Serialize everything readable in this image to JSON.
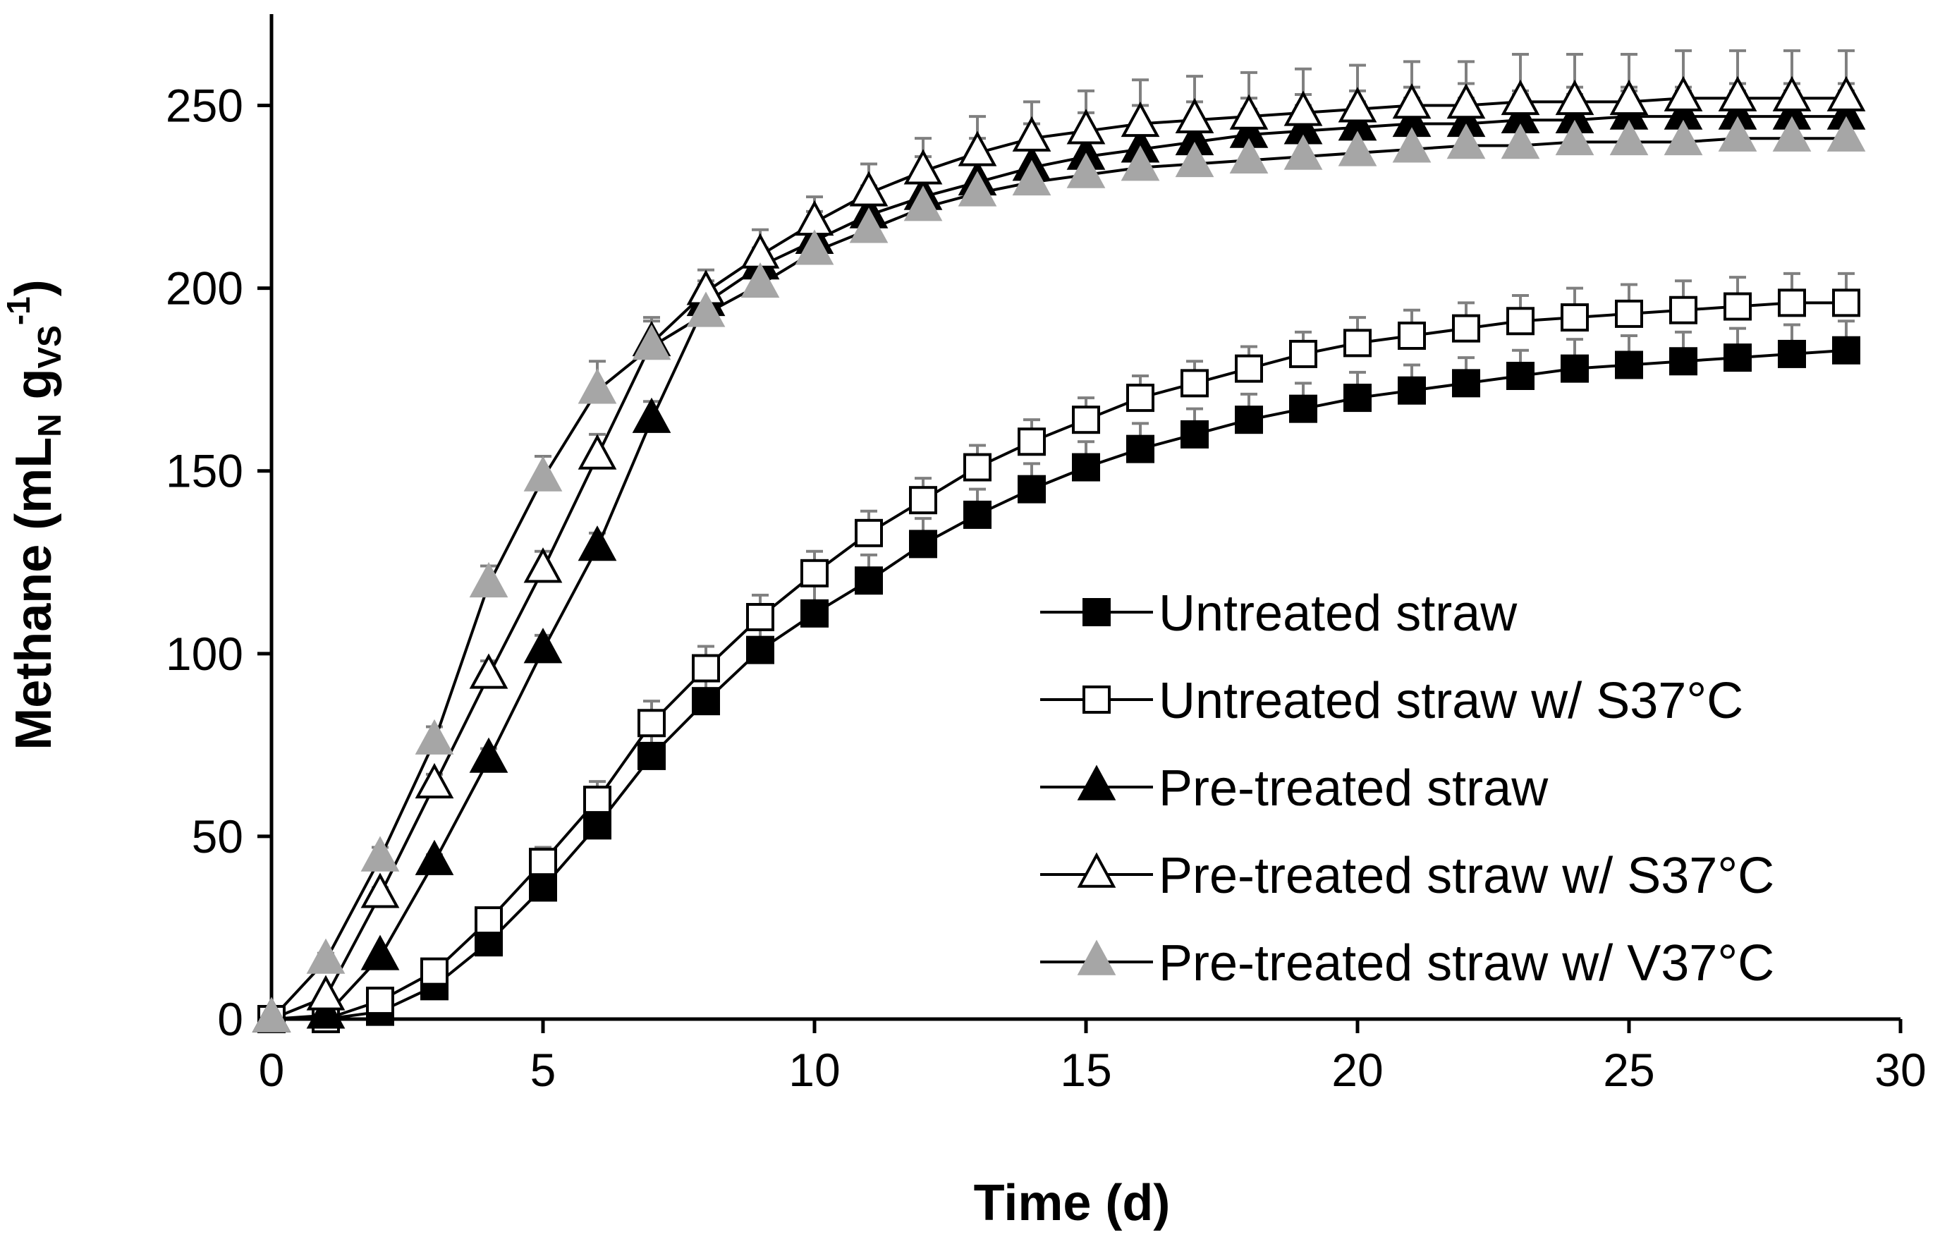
{
  "chart_data": {
    "type": "line",
    "xlabel": "Time (d)",
    "ylabel": {
      "prefix": "Methane (mL",
      "sub1": "N",
      "mid": " g",
      "sub2": "VS",
      "sup": "-1",
      "suffix": ")"
    },
    "xlim": [
      0,
      30
    ],
    "ylim": [
      0,
      250
    ],
    "xticks": [
      0,
      5,
      10,
      15,
      20,
      25,
      30
    ],
    "yticks": [
      0,
      50,
      100,
      150,
      200,
      250
    ],
    "grid": false,
    "legend_position": "lower-right",
    "x": [
      0,
      1,
      2,
      3,
      4,
      5,
      6,
      7,
      8,
      9,
      10,
      11,
      12,
      13,
      14,
      15,
      16,
      17,
      18,
      19,
      20,
      21,
      22,
      23,
      24,
      25,
      26,
      27,
      28,
      29
    ],
    "series": [
      {
        "name": "Untreated straw",
        "marker": "square",
        "fill": "#000000",
        "errorColor": "#808080",
        "y": [
          0,
          0,
          2,
          9,
          21,
          36,
          53,
          72,
          87,
          101,
          111,
          120,
          130,
          138,
          145,
          151,
          156,
          160,
          164,
          167,
          170,
          172,
          174,
          176,
          178,
          179,
          180,
          181,
          182,
          183
        ],
        "err": [
          0,
          0,
          1,
          2,
          3,
          4,
          5,
          6,
          7,
          8,
          8,
          7,
          7,
          7,
          7,
          7,
          7,
          7,
          7,
          7,
          7,
          7,
          7,
          7,
          8,
          8,
          8,
          8,
          8,
          8
        ]
      },
      {
        "name": "Untreated straw w/ S37°C",
        "marker": "square",
        "fill": "#ffffff",
        "errorColor": "#808080",
        "y": [
          0,
          0,
          5,
          13,
          27,
          43,
          60,
          81,
          96,
          110,
          122,
          133,
          142,
          151,
          158,
          164,
          170,
          174,
          178,
          182,
          185,
          187,
          189,
          191,
          192,
          193,
          194,
          195,
          196,
          196
        ],
        "err": [
          0,
          0,
          1,
          2,
          3,
          4,
          5,
          6,
          6,
          6,
          6,
          6,
          6,
          6,
          6,
          6,
          6,
          6,
          6,
          6,
          7,
          7,
          7,
          7,
          8,
          8,
          8,
          8,
          8,
          8
        ]
      },
      {
        "name": "Pre-treated straw",
        "marker": "triangle",
        "fill": "#000000",
        "errorColor": "#808080",
        "y": [
          0,
          1,
          17,
          43,
          71,
          101,
          129,
          164,
          196,
          206,
          213,
          220,
          225,
          229,
          233,
          236,
          238,
          240,
          242,
          243,
          244,
          245,
          245,
          246,
          246,
          247,
          247,
          247,
          247,
          247
        ],
        "err": [
          0,
          0,
          1,
          2,
          3,
          4,
          4,
          5,
          5,
          5,
          5,
          6,
          6,
          6,
          7,
          7,
          7,
          7,
          7,
          7,
          7,
          7,
          7,
          7,
          7,
          7,
          7,
          7,
          7,
          7
        ]
      },
      {
        "name": "Pre-treated straw w/ S37°C",
        "marker": "triangle",
        "fill": "#ffffff",
        "errorColor": "#808080",
        "y": [
          0,
          6,
          34,
          64,
          94,
          123,
          154,
          185,
          199,
          209,
          218,
          226,
          232,
          237,
          241,
          243,
          245,
          246,
          247,
          248,
          249,
          250,
          250,
          251,
          251,
          251,
          252,
          252,
          252,
          252
        ],
        "err": [
          0,
          1,
          2,
          3,
          4,
          5,
          6,
          6,
          6,
          7,
          7,
          8,
          9,
          10,
          10,
          11,
          12,
          12,
          12,
          12,
          12,
          12,
          12,
          13,
          13,
          13,
          13,
          13,
          13,
          13
        ]
      },
      {
        "name": "Pre-treated straw w/ V37°C",
        "marker": "triangle",
        "fill": "#a6a6a6",
        "errorColor": "#808080",
        "y": [
          0,
          16,
          44,
          76,
          119,
          148,
          172,
          184,
          193,
          201,
          210,
          216,
          222,
          226,
          229,
          231,
          233,
          234,
          235,
          236,
          237,
          238,
          239,
          239,
          240,
          240,
          240,
          241,
          241,
          241
        ],
        "err": [
          0,
          2,
          3,
          4,
          5,
          6,
          8,
          8,
          9,
          10,
          11,
          12,
          14,
          15,
          16,
          17,
          17,
          17,
          17,
          17,
          17,
          17,
          17,
          15,
          15,
          15,
          15,
          15,
          15,
          15
        ]
      }
    ]
  }
}
